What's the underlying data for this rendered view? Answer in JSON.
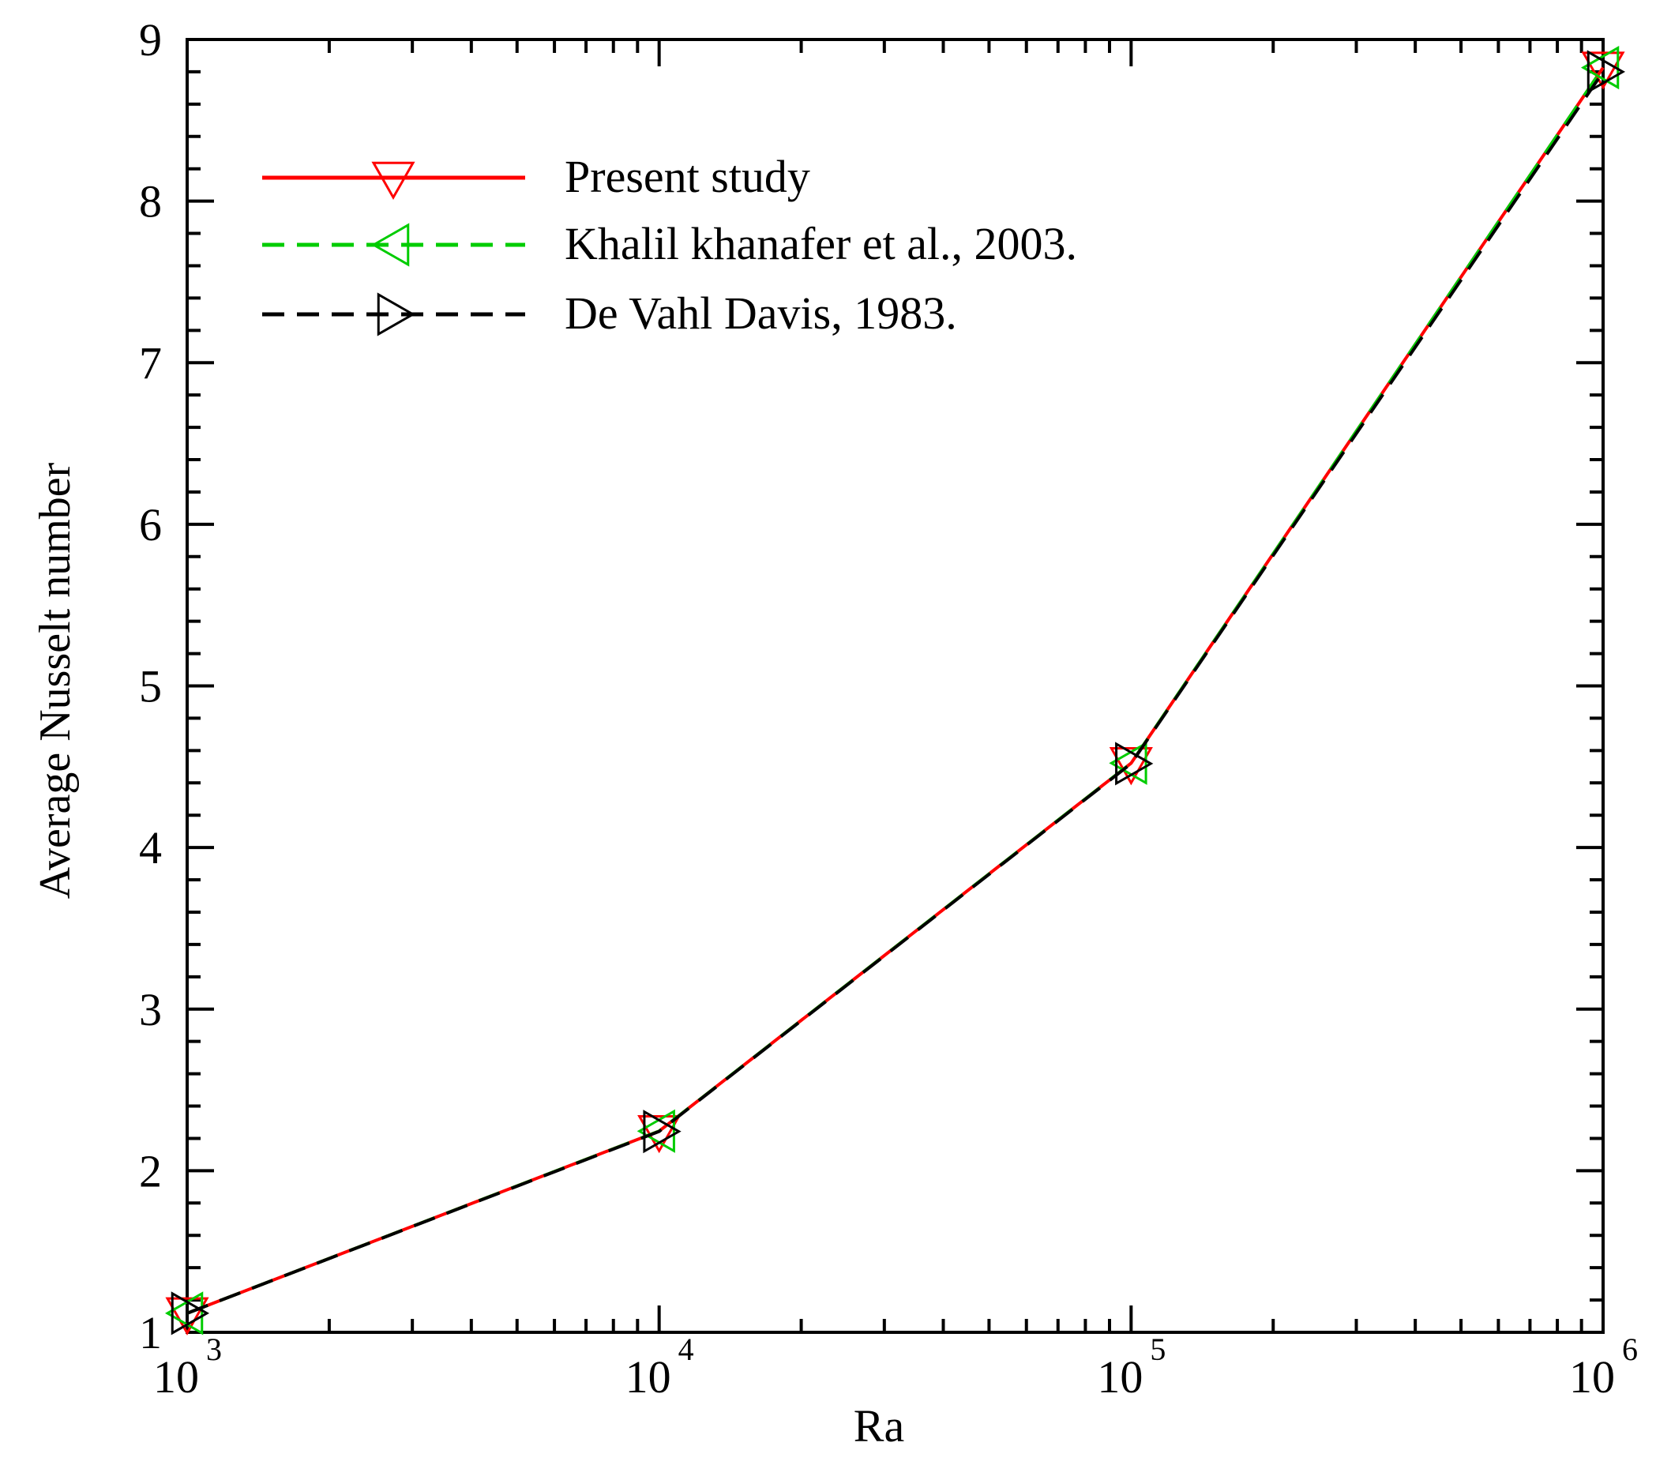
{
  "chart_data": {
    "type": "line",
    "xscale": "log",
    "x": [
      1000,
      10000,
      100000,
      1000000
    ],
    "xlim": [
      1000,
      1000000
    ],
    "ylim": [
      1,
      9
    ],
    "xlabel": "Ra",
    "ylabel": "Average Nusselt number",
    "x_tick_labels": [
      {
        "value": 1000,
        "base": "10",
        "exp": "3"
      },
      {
        "value": 10000,
        "base": "10",
        "exp": "4"
      },
      {
        "value": 100000,
        "base": "10",
        "exp": "5"
      },
      {
        "value": 1000000,
        "base": "10",
        "exp": "6"
      }
    ],
    "y_ticks": [
      "1",
      "2",
      "3",
      "4",
      "5",
      "6",
      "7",
      "8",
      "9"
    ],
    "grid": false,
    "legend_position": "top-left",
    "series": [
      {
        "name": "Present study",
        "values": [
          1.118,
          2.245,
          4.522,
          8.826
        ],
        "color": "#ff0000",
        "dash": "solid",
        "marker": "triangle-down"
      },
      {
        "name": "Khalil khanafer et al., 2003.",
        "values": [
          1.118,
          2.245,
          4.522,
          8.826
        ],
        "color": "#00cc00",
        "dash": "dashed",
        "marker": "triangle-left"
      },
      {
        "name": "De Vahl Davis,  1983.",
        "values": [
          1.118,
          2.243,
          4.519,
          8.8
        ],
        "color": "#000000",
        "dash": "dashed",
        "marker": "triangle-right"
      }
    ]
  }
}
